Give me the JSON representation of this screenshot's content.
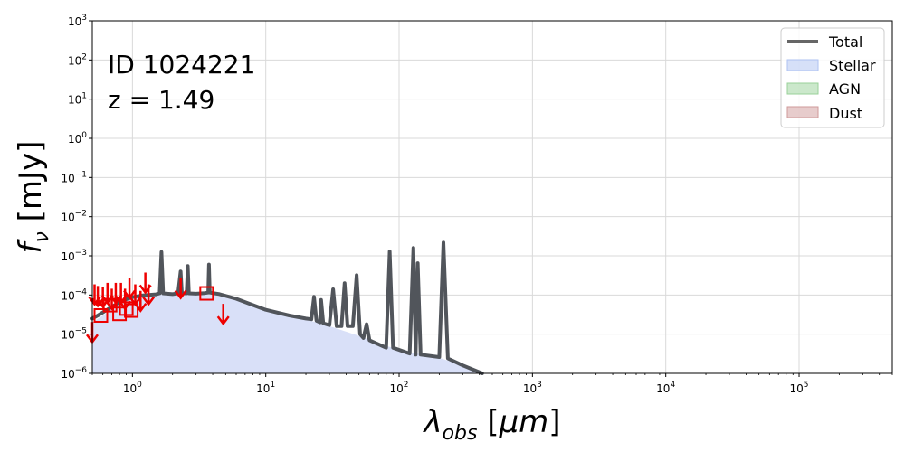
{
  "chart_data": {
    "type": "line",
    "xscale": "log",
    "yscale": "log",
    "xlim": [
      0.5,
      500000
    ],
    "ylim": [
      1e-06,
      1000
    ],
    "xlabel": "λobs [μm]",
    "ylabel": "fν [mJy]",
    "grid": true,
    "legend_position": "top-right",
    "x_ticks": [
      {
        "value": 1,
        "base": "10",
        "exp": "0"
      },
      {
        "value": 10,
        "base": "10",
        "exp": "1"
      },
      {
        "value": 100,
        "base": "10",
        "exp": "2"
      },
      {
        "value": 1000,
        "base": "10",
        "exp": "3"
      },
      {
        "value": 10000,
        "base": "10",
        "exp": "4"
      },
      {
        "value": 100000,
        "base": "10",
        "exp": "5"
      }
    ],
    "y_ticks": [
      {
        "value": 1e-06,
        "base": "10",
        "exp": "−6"
      },
      {
        "value": 1e-05,
        "base": "10",
        "exp": "−5"
      },
      {
        "value": 0.0001,
        "base": "10",
        "exp": "−4"
      },
      {
        "value": 0.001,
        "base": "10",
        "exp": "−3"
      },
      {
        "value": 0.01,
        "base": "10",
        "exp": "−2"
      },
      {
        "value": 0.1,
        "base": "10",
        "exp": "−1"
      },
      {
        "value": 1,
        "base": "10",
        "exp": "0"
      },
      {
        "value": 10,
        "base": "10",
        "exp": "1"
      },
      {
        "value": 100,
        "base": "10",
        "exp": "2"
      },
      {
        "value": 1000,
        "base": "10",
        "exp": "3"
      }
    ],
    "annotations": {
      "id": "ID 1024221",
      "redshift": "z = 1.49"
    },
    "legend": [
      {
        "label": "Total",
        "kind": "line",
        "color": "#555555"
      },
      {
        "label": "Stellar",
        "kind": "patch",
        "color": "#aec2f2"
      },
      {
        "label": "AGN",
        "kind": "patch",
        "color": "#98d198"
      },
      {
        "label": "Dust",
        "kind": "patch",
        "color": "#cf9a9a"
      }
    ],
    "colors": {
      "total": "#51555b",
      "stellar_fill": "#d9e0f8",
      "data": "#ee0000",
      "grid": "#d9d9d9"
    },
    "series": [
      {
        "name": "Total",
        "points": [
          [
            0.5,
            2.5e-05
          ],
          [
            0.55,
            3e-05
          ],
          [
            0.6,
            3.6e-05
          ],
          [
            0.7,
            5e-05
          ],
          [
            0.8,
            6.6e-05
          ],
          [
            0.9,
            7.8e-05
          ],
          [
            1.0,
            8.8e-05
          ],
          [
            1.2,
            9.8e-05
          ],
          [
            1.5,
            0.000104
          ],
          [
            1.6,
            0.00011
          ],
          [
            1.65,
            0.00125
          ],
          [
            1.7,
            0.00011
          ],
          [
            2.0,
            0.000105
          ],
          [
            2.2,
            0.00011
          ],
          [
            2.3,
            0.0004
          ],
          [
            2.35,
            0.00011
          ],
          [
            2.55,
            0.00011
          ],
          [
            2.6,
            0.00055
          ],
          [
            2.65,
            0.00011
          ],
          [
            3.0,
            0.000108
          ],
          [
            3.5,
            0.000112
          ],
          [
            3.7,
            0.000115
          ],
          [
            3.75,
            0.0006
          ],
          [
            3.8,
            0.000115
          ],
          [
            4.5,
            0.000105
          ],
          [
            6.0,
            8e-05
          ],
          [
            10.0,
            4.2e-05
          ],
          [
            15.0,
            3e-05
          ],
          [
            20.0,
            2.5e-05
          ],
          [
            22.0,
            2.4e-05
          ],
          [
            23.0,
            9e-05
          ],
          [
            24.0,
            2.2e-05
          ],
          [
            25.5,
            2e-05
          ],
          [
            26.0,
            7.5e-05
          ],
          [
            27.0,
            1.9e-05
          ],
          [
            30.0,
            1.7e-05
          ],
          [
            32.0,
            0.00014
          ],
          [
            34.0,
            1.6e-05
          ],
          [
            37.0,
            1.6e-05
          ],
          [
            39.0,
            0.0002
          ],
          [
            41.0,
            1.6e-05
          ],
          [
            45.0,
            1.6e-05
          ],
          [
            48.0,
            0.00032
          ],
          [
            51.0,
            1e-05
          ],
          [
            54.0,
            8e-06
          ],
          [
            57.0,
            1.8e-05
          ],
          [
            60.0,
            7e-06
          ],
          [
            80.0,
            4.5e-06
          ],
          [
            85.0,
            0.0013
          ],
          [
            90.0,
            4.5e-06
          ],
          [
            120.0,
            3.2e-06
          ],
          [
            128.0,
            0.0016
          ],
          [
            133.0,
            3e-06
          ],
          [
            138.0,
            0.00065
          ],
          [
            145.0,
            3e-06
          ],
          [
            200.0,
            2.6e-06
          ],
          [
            215.0,
            0.0022
          ],
          [
            232.0,
            2.4e-06
          ],
          [
            300.0,
            1.6e-06
          ],
          [
            420.0,
            1e-06
          ]
        ]
      },
      {
        "name": "Stellar",
        "points": [
          [
            0.5,
            2e-05
          ],
          [
            0.6,
            3e-05
          ],
          [
            0.8,
            6e-05
          ],
          [
            1.0,
            8.2e-05
          ],
          [
            1.5,
            0.000102
          ],
          [
            2.0,
            0.000104
          ],
          [
            3.0,
            0.000104
          ],
          [
            4.0,
            0.0001
          ],
          [
            6.0,
            7.8e-05
          ],
          [
            10.0,
            4.2e-05
          ],
          [
            20.0,
            2.4e-05
          ],
          [
            30.0,
            1.6e-05
          ],
          [
            50.0,
            9e-06
          ],
          [
            80.0,
            5e-06
          ],
          [
            120.0,
            3.5e-06
          ],
          [
            200.0,
            2.5e-06
          ],
          [
            300.0,
            1.6e-06
          ],
          [
            420.0,
            1e-06
          ]
        ]
      }
    ],
    "photometry_detections": [
      [
        0.58,
        3e-05
      ],
      [
        0.68,
        5.5e-05
      ],
      [
        0.8,
        3.3e-05
      ],
      [
        0.9,
        4.5e-05
      ],
      [
        0.98,
        4e-05
      ],
      [
        3.6,
        0.00011
      ]
    ],
    "photometry_upper_limits": [
      [
        0.5,
        1.2e-05
      ],
      [
        0.52,
        0.00011
      ],
      [
        0.55,
        0.0001
      ],
      [
        0.6,
        9.5e-05
      ],
      [
        0.65,
        0.00012
      ],
      [
        0.7,
        8.5e-05
      ],
      [
        0.75,
        0.00012
      ],
      [
        0.82,
        0.00012
      ],
      [
        0.88,
        8.5e-05
      ],
      [
        0.95,
        0.00016
      ],
      [
        1.05,
        0.00011
      ],
      [
        1.15,
        7.5e-05
      ],
      [
        1.25,
        0.00022
      ],
      [
        1.32,
        0.00011
      ],
      [
        2.3,
        0.00016
      ],
      [
        4.8,
        3.5e-05
      ]
    ]
  }
}
